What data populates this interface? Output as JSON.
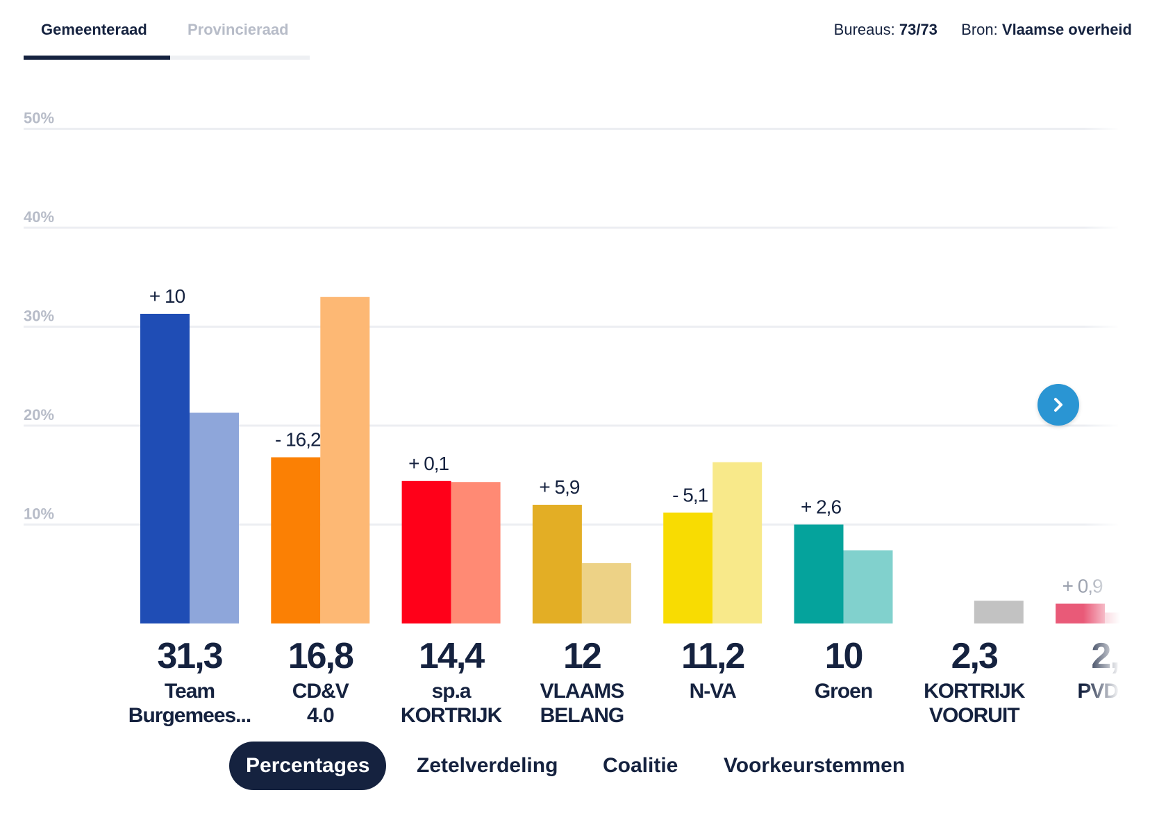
{
  "tabs": {
    "gemeenteraad": "Gemeenteraad",
    "provincieraad": "Provincieraad"
  },
  "meta": {
    "bureaus_label": "Bureaus:",
    "bureaus_value": "73/73",
    "bron_label": "Bron:",
    "bron_value": "Vlaamse overheid"
  },
  "view_tabs": [
    "Percentages",
    "Zetelverdeling",
    "Coalitie",
    "Voorkeurstemmen"
  ],
  "next_icon": "chevron-right-icon",
  "chart_data": {
    "type": "bar",
    "ylim": [
      0,
      50
    ],
    "yticks": [
      "10%",
      "20%",
      "30%",
      "40%",
      "50%"
    ],
    "ytick_values": [
      10,
      20,
      30,
      40,
      50
    ],
    "grid": true,
    "categories": [
      [
        "Team",
        "Burgemees..."
      ],
      [
        "CD&V",
        "4.0"
      ],
      [
        "sp.a",
        "KORTRIJK"
      ],
      [
        "VLAAMS",
        "BELANG"
      ],
      [
        "N-VA"
      ],
      [
        "Groen"
      ],
      [
        "KORTRIJK",
        "VOORUIT"
      ],
      [
        "PVDA"
      ]
    ],
    "value_labels": [
      "31,3",
      "16,8",
      "14,4",
      "12",
      "11,2",
      "10",
      "2,3",
      "2,"
    ],
    "series": [
      {
        "values": [
          31.3,
          16.8,
          14.4,
          12.0,
          11.2,
          10.0,
          null,
          2.0
        ]
      },
      {
        "values": [
          21.3,
          33.0,
          14.3,
          6.1,
          16.3,
          7.4,
          2.3,
          1.1
        ]
      }
    ],
    "delta_labels": [
      "+ 10",
      "- 16,2",
      "+ 0,1",
      "+ 5,9",
      "- 5,1",
      "+ 2,6",
      "",
      "+ 0,9"
    ],
    "colors_current": [
      "#1f4db5",
      "#fb8004",
      "#ff0019",
      "#e3ae25",
      "#f8dc02",
      "#05a39c",
      "#c2c2c2",
      "#e95a78"
    ],
    "colors_previous": [
      "#8ea6da",
      "#fdb874",
      "#ff8a74",
      "#edd286",
      "#f8e98a",
      "#81d1cd",
      "#c2c2c2",
      "#f2a9b8"
    ]
  }
}
